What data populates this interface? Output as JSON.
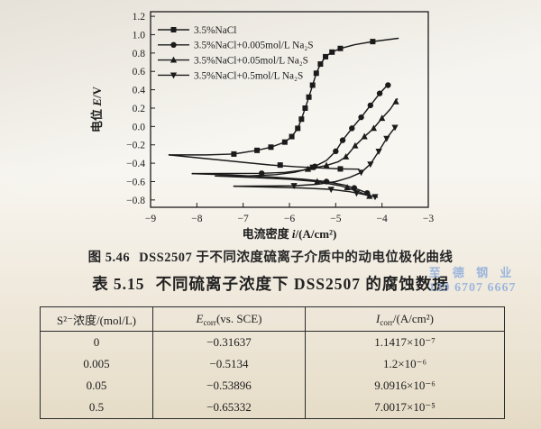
{
  "page": {
    "figure_caption": {
      "label": "图 5.46",
      "text": "DSS2507 于不同浓度硫离子介质中的动电位极化曲线"
    },
    "table_title": {
      "label": "表 5.15",
      "text": "不同硫离子浓度下 DSS2507 的腐蚀数据"
    },
    "watermark": {
      "line1": "至 德 钢 业",
      "line2": "139 6707 6667",
      "color": "#9db6dc"
    }
  },
  "chart_data": {
    "type": "line",
    "title": "",
    "xlabel": {
      "pre": "电流密度",
      "sym": "i",
      "rest": "/(A/cm²)"
    },
    "ylabel": {
      "pre": "电位",
      "sym": "E",
      "rest": "/V"
    },
    "xlim": [
      -9,
      -3
    ],
    "ylim": [
      -0.88,
      1.25
    ],
    "xticks": [
      -9,
      -8,
      -7,
      -6,
      -5,
      -4,
      -3
    ],
    "xtick_labels": [
      "−9",
      "−8",
      "−7",
      "−6",
      "−5",
      "−4",
      "−3"
    ],
    "yticks": [
      1.2,
      1.0,
      0.8,
      0.6,
      0.4,
      0.2,
      0.0,
      -0.2,
      -0.4,
      -0.6,
      -0.8
    ],
    "ytick_labels": [
      "1.2",
      "1.0",
      "0.8",
      "0.6",
      "0.4",
      "0.2",
      "0.0",
      "−0.2",
      "−0.4",
      "−0.6",
      "−0.8"
    ],
    "grid": false,
    "legend_position": "top-left",
    "ink_color": "#1b1b1b",
    "series": [
      {
        "name": "3.5%NaCl",
        "marker": "square",
        "corrosion_potential": -0.31637,
        "anodic": [
          [
            -8.6,
            -0.31
          ],
          [
            -7.8,
            -0.31
          ],
          [
            -7.2,
            -0.3
          ],
          [
            -6.7,
            -0.26
          ],
          [
            -6.4,
            -0.225
          ],
          [
            -6.1,
            -0.17
          ],
          [
            -5.95,
            -0.11
          ],
          [
            -5.82,
            -0.02
          ],
          [
            -5.74,
            0.08
          ],
          [
            -5.66,
            0.2
          ],
          [
            -5.58,
            0.32
          ],
          [
            -5.5,
            0.45
          ],
          [
            -5.42,
            0.58
          ],
          [
            -5.33,
            0.68
          ],
          [
            -5.22,
            0.76
          ],
          [
            -5.08,
            0.81
          ],
          [
            -4.9,
            0.85
          ],
          [
            -4.6,
            0.89
          ],
          [
            -4.2,
            0.925
          ],
          [
            -3.65,
            0.96
          ]
        ],
        "cathodic": [
          [
            -8.6,
            -0.31
          ],
          [
            -7.8,
            -0.35
          ],
          [
            -7.0,
            -0.39
          ],
          [
            -6.4,
            -0.42
          ],
          [
            -5.8,
            -0.44
          ],
          [
            -5.2,
            -0.455
          ],
          [
            -4.9,
            -0.462
          ],
          [
            -4.5,
            -0.465
          ]
        ],
        "markers": [
          [
            -7.2,
            -0.3
          ],
          [
            -6.7,
            -0.26
          ],
          [
            -6.4,
            -0.225
          ],
          [
            -6.1,
            -0.17
          ],
          [
            -5.95,
            -0.11
          ],
          [
            -5.82,
            -0.02
          ],
          [
            -5.74,
            0.08
          ],
          [
            -5.66,
            0.2
          ],
          [
            -5.58,
            0.32
          ],
          [
            -5.5,
            0.45
          ],
          [
            -5.42,
            0.58
          ],
          [
            -5.33,
            0.68
          ],
          [
            -5.22,
            0.76
          ],
          [
            -5.08,
            0.81
          ],
          [
            -4.9,
            0.85
          ],
          [
            -4.2,
            0.925
          ],
          [
            -6.2,
            -0.42
          ],
          [
            -5.5,
            -0.445
          ],
          [
            -4.9,
            -0.462
          ]
        ]
      },
      {
        "name": "3.5%NaCl+0.005mol/L Na₂S",
        "marker": "circle",
        "corrosion_potential": -0.5134,
        "anodic": [
          [
            -8.1,
            -0.513
          ],
          [
            -7.3,
            -0.512
          ],
          [
            -6.6,
            -0.51
          ],
          [
            -6.1,
            -0.5
          ],
          [
            -5.7,
            -0.475
          ],
          [
            -5.45,
            -0.435
          ],
          [
            -5.2,
            -0.37
          ],
          [
            -5.0,
            -0.27
          ],
          [
            -4.85,
            -0.15
          ],
          [
            -4.65,
            -0.02
          ],
          [
            -4.45,
            0.1
          ],
          [
            -4.25,
            0.23
          ],
          [
            -4.05,
            0.36
          ],
          [
            -3.85,
            0.47
          ]
        ],
        "cathodic": [
          [
            -8.1,
            -0.513
          ],
          [
            -7.2,
            -0.53
          ],
          [
            -6.4,
            -0.55
          ],
          [
            -5.7,
            -0.575
          ],
          [
            -5.2,
            -0.6
          ],
          [
            -4.8,
            -0.64
          ],
          [
            -4.5,
            -0.69
          ],
          [
            -4.3,
            -0.73
          ]
        ],
        "markers": [
          [
            -6.6,
            -0.51
          ],
          [
            -5.45,
            -0.435
          ],
          [
            -5.0,
            -0.27
          ],
          [
            -4.85,
            -0.15
          ],
          [
            -4.65,
            -0.02
          ],
          [
            -4.45,
            0.1
          ],
          [
            -4.25,
            0.23
          ],
          [
            -4.05,
            0.36
          ],
          [
            -3.87,
            0.45
          ],
          [
            -5.2,
            -0.6
          ],
          [
            -4.6,
            -0.67
          ],
          [
            -4.32,
            -0.725
          ]
        ]
      },
      {
        "name": "3.5%NaCl+0.05mol/L Na₂S",
        "marker": "triangle-up",
        "corrosion_potential": -0.53896,
        "anodic": [
          [
            -7.6,
            -0.539
          ],
          [
            -6.9,
            -0.538
          ],
          [
            -6.3,
            -0.525
          ],
          [
            -5.9,
            -0.5
          ],
          [
            -5.6,
            -0.465
          ],
          [
            -5.2,
            -0.425
          ],
          [
            -4.95,
            -0.385
          ],
          [
            -4.78,
            -0.33
          ],
          [
            -4.58,
            -0.21
          ],
          [
            -4.38,
            -0.11
          ],
          [
            -4.18,
            -0.02
          ],
          [
            -4.0,
            0.09
          ],
          [
            -3.82,
            0.19
          ],
          [
            -3.67,
            0.3
          ]
        ],
        "cathodic": [
          [
            -7.6,
            -0.539
          ],
          [
            -6.8,
            -0.555
          ],
          [
            -6.0,
            -0.575
          ],
          [
            -5.4,
            -0.6
          ],
          [
            -4.9,
            -0.645
          ],
          [
            -4.55,
            -0.7
          ],
          [
            -4.27,
            -0.76
          ]
        ],
        "markers": [
          [
            -5.6,
            -0.465
          ],
          [
            -5.2,
            -0.425
          ],
          [
            -4.78,
            -0.33
          ],
          [
            -4.58,
            -0.21
          ],
          [
            -4.38,
            -0.11
          ],
          [
            -4.18,
            -0.02
          ],
          [
            -4.0,
            0.09
          ],
          [
            -3.7,
            0.27
          ],
          [
            -5.4,
            -0.6
          ],
          [
            -4.75,
            -0.665
          ],
          [
            -4.27,
            -0.76
          ]
        ]
      },
      {
        "name": "3.5%NaCl+0.5mol/L Na₂S",
        "marker": "triangle-down",
        "corrosion_potential": -0.65332,
        "anodic": [
          [
            -7.2,
            -0.65
          ],
          [
            -6.5,
            -0.648
          ],
          [
            -5.9,
            -0.645
          ],
          [
            -5.4,
            -0.63
          ],
          [
            -5.0,
            -0.6
          ],
          [
            -4.7,
            -0.555
          ],
          [
            -4.45,
            -0.5
          ],
          [
            -4.25,
            -0.41
          ],
          [
            -4.07,
            -0.27
          ],
          [
            -3.9,
            -0.13
          ],
          [
            -3.72,
            -0.01
          ]
        ],
        "cathodic": [
          [
            -7.2,
            -0.65
          ],
          [
            -6.4,
            -0.66
          ],
          [
            -5.7,
            -0.67
          ],
          [
            -5.1,
            -0.685
          ],
          [
            -4.7,
            -0.71
          ],
          [
            -4.35,
            -0.745
          ],
          [
            -4.1,
            -0.77
          ]
        ],
        "markers": [
          [
            -5.9,
            -0.645
          ],
          [
            -4.45,
            -0.5
          ],
          [
            -4.25,
            -0.41
          ],
          [
            -4.07,
            -0.27
          ],
          [
            -3.9,
            -0.13
          ],
          [
            -3.72,
            -0.01
          ],
          [
            -5.1,
            -0.685
          ],
          [
            -4.55,
            -0.725
          ],
          [
            -4.15,
            -0.765
          ]
        ]
      }
    ]
  },
  "table": {
    "headers": {
      "col1": "S²⁻浓度/(mol/L)",
      "col2": {
        "base": "E",
        "sub": "corr",
        "rest": "(vs. SCE)"
      },
      "col3": {
        "base": "I",
        "sub": "corr",
        "rest": "/(A/cm²)"
      }
    },
    "rows": [
      {
        "conc": "0",
        "ecorr": "−0.31637",
        "icorr": "1.1417×10⁻⁷"
      },
      {
        "conc": "0.005",
        "ecorr": "−0.5134",
        "icorr": "1.2×10⁻⁶"
      },
      {
        "conc": "0.05",
        "ecorr": "−0.53896",
        "icorr": "9.0916×10⁻⁶"
      },
      {
        "conc": "0.5",
        "ecorr": "−0.65332",
        "icorr": "7.0017×10⁻⁵"
      }
    ]
  }
}
